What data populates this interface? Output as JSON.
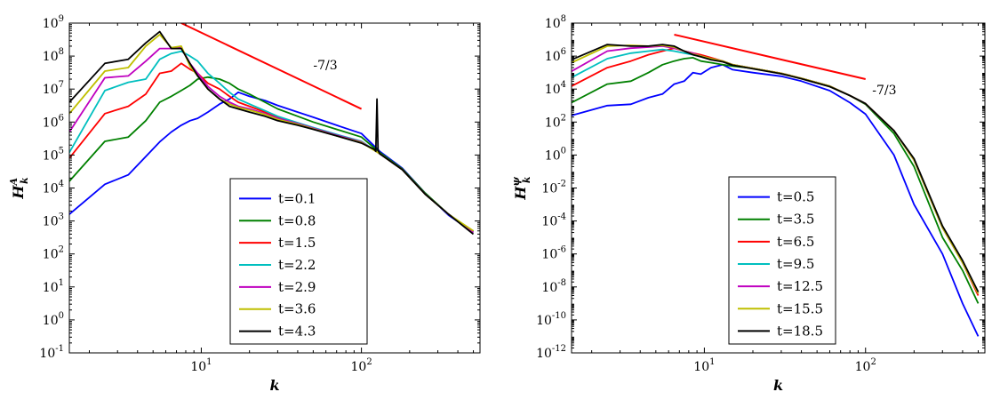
{
  "chart_data": [
    {
      "type": "line",
      "xscale": "log",
      "yscale": "log",
      "xlim": [
        1.5,
        550
      ],
      "ylim": [
        0.1,
        1000000000
      ],
      "xlabel": "k",
      "ylabel": "H",
      "ylabel_sup": "A",
      "ylabel_sub": "k",
      "x_ticks": [
        10,
        100
      ],
      "x_tick_labels": [
        {
          "base": "10",
          "exp": "1"
        },
        {
          "base": "10",
          "exp": "2"
        }
      ],
      "y_ticks": [
        0.1,
        1,
        10,
        100,
        1000,
        10000,
        100000,
        1000000,
        10000000,
        100000000,
        1000000000
      ],
      "y_tick_labels": [
        {
          "base": "10",
          "exp": "-1"
        },
        {
          "base": "10",
          "exp": "0"
        },
        {
          "base": "10",
          "exp": "1"
        },
        {
          "base": "10",
          "exp": "2"
        },
        {
          "base": "10",
          "exp": "3"
        },
        {
          "base": "10",
          "exp": "4"
        },
        {
          "base": "10",
          "exp": "5"
        },
        {
          "base": "10",
          "exp": "6"
        },
        {
          "base": "10",
          "exp": "7"
        },
        {
          "base": "10",
          "exp": "8"
        },
        {
          "base": "10",
          "exp": "9"
        }
      ],
      "legend_position": "lower-center",
      "series": [
        {
          "name": "t=0.1",
          "color": "#0000ff",
          "x": [
            1.5,
            2.5,
            3.5,
            4.5,
            5.5,
            6.5,
            7.5,
            8.5,
            9.5,
            11,
            13,
            15,
            17,
            20,
            25,
            30,
            40,
            50,
            70,
            100,
            130,
            180,
            250,
            350,
            500
          ],
          "y": [
            1600,
            13000,
            25000,
            90000,
            250000,
            500000,
            800000,
            1100000,
            1300000,
            2000000,
            3500000,
            5000000,
            8000000,
            6000000,
            4500000,
            3200000,
            2000000,
            1400000,
            800000,
            450000,
            130000,
            40000,
            7000,
            1500,
            450
          ]
        },
        {
          "name": "t=0.8",
          "color": "#008000",
          "x": [
            1.5,
            2.5,
            3.5,
            4.5,
            5.5,
            6.5,
            7.5,
            8.5,
            9.5,
            11,
            13,
            15,
            17,
            20,
            25,
            30,
            40,
            50,
            70,
            100,
            130,
            180,
            250,
            350,
            500
          ],
          "y": [
            16000,
            260000,
            350000,
            1100000,
            4000000,
            6000000,
            9000000,
            13000000,
            20000000,
            23000000,
            20000000,
            15000000,
            10000000,
            7000000,
            4000000,
            2500000,
            1500000,
            1000000,
            600000,
            350000,
            120000,
            38000,
            7000,
            1600,
            480
          ]
        },
        {
          "name": "t=1.5",
          "color": "#ff0000",
          "x": [
            1.5,
            2.5,
            3.5,
            4.5,
            5.5,
            6.5,
            7.5,
            8.5,
            9.5,
            11,
            13,
            15,
            17,
            20,
            25,
            30,
            40,
            50,
            70,
            100,
            130,
            180,
            250,
            350,
            500
          ],
          "y": [
            80000,
            1800000,
            3000000,
            7000000,
            30000000,
            35000000,
            60000000,
            40000000,
            30000000,
            15000000,
            10000000,
            6000000,
            4000000,
            3000000,
            2000000,
            1400000,
            900000,
            650000,
            400000,
            250000,
            110000,
            36000,
            6500,
            1600,
            450
          ]
        },
        {
          "name": "t=2.2",
          "color": "#00bfbf",
          "x": [
            1.5,
            2.5,
            3.5,
            4.5,
            5.5,
            6.5,
            7.5,
            8.5,
            9.5,
            11,
            13,
            15,
            17,
            20,
            25,
            30,
            40,
            50,
            70,
            100,
            130,
            180,
            250,
            350,
            500
          ],
          "y": [
            120000,
            9000000,
            16000000,
            20000000,
            80000000,
            120000000,
            140000000,
            100000000,
            70000000,
            30000000,
            15000000,
            8000000,
            5000000,
            3500000,
            2200000,
            1500000,
            950000,
            680000,
            420000,
            260000,
            110000,
            36000,
            6500,
            1600,
            450
          ]
        },
        {
          "name": "t=2.9",
          "color": "#bf00bf",
          "x": [
            1.5,
            2.5,
            3.5,
            4.5,
            5.5,
            6.5,
            7.5,
            8.5,
            9.5,
            11,
            13,
            15,
            17,
            20,
            25,
            30,
            40,
            50,
            70,
            100,
            130,
            180,
            250,
            350,
            500
          ],
          "y": [
            500000,
            22000000,
            25000000,
            70000000,
            170000000,
            170000000,
            180000000,
            60000000,
            30000000,
            12000000,
            6000000,
            4000000,
            3000000,
            2500000,
            1800000,
            1300000,
            900000,
            650000,
            400000,
            250000,
            110000,
            36000,
            6500,
            1600,
            450
          ]
        },
        {
          "name": "t=3.6",
          "color": "#bfbf00",
          "x": [
            1.5,
            2.5,
            3.5,
            4.5,
            5.5,
            6.5,
            7.5,
            8.5,
            9.5,
            11,
            13,
            15,
            17,
            20,
            25,
            30,
            40,
            50,
            70,
            100,
            130,
            180,
            250,
            350,
            500
          ],
          "y": [
            1800000,
            35000000,
            45000000,
            200000000,
            450000000,
            180000000,
            200000000,
            50000000,
            25000000,
            10000000,
            5000000,
            3500000,
            2800000,
            2300000,
            1700000,
            1200000,
            850000,
            620000,
            380000,
            240000,
            110000,
            36000,
            6500,
            1600,
            500
          ]
        },
        {
          "name": "t=4.3",
          "color": "#000000",
          "x": [
            1.5,
            2.5,
            3.5,
            4.5,
            5.5,
            6.5,
            7.5,
            8.5,
            9.5,
            11,
            13,
            15,
            17,
            20,
            25,
            30,
            40,
            50,
            70,
            100,
            120,
            123,
            125,
            127,
            130,
            180,
            250,
            350,
            500
          ],
          "y": [
            4000000,
            60000000,
            80000000,
            250000000,
            550000000,
            170000000,
            170000000,
            60000000,
            25000000,
            10000000,
            5000000,
            3000000,
            2500000,
            2000000,
            1500000,
            1100000,
            800000,
            600000,
            380000,
            230000,
            150000,
            130000,
            5000000,
            140000,
            110000,
            36000,
            6500,
            1600,
            400
          ]
        }
      ],
      "reference_line": {
        "color": "#ff0000",
        "x": [
          7.5,
          100
        ],
        "y": [
          1000000000,
          2500000
        ],
        "label": "-7/3",
        "label_x": 50,
        "label_y": 40000000
      }
    },
    {
      "type": "line",
      "xscale": "log",
      "yscale": "log",
      "xlim": [
        1.5,
        550
      ],
      "ylim": [
        1e-12,
        100000000
      ],
      "xlabel": "k",
      "ylabel": "H",
      "ylabel_sup": "ψ",
      "ylabel_sub": "k",
      "x_ticks": [
        10,
        100
      ],
      "x_tick_labels": [
        {
          "base": "10",
          "exp": "1"
        },
        {
          "base": "10",
          "exp": "2"
        }
      ],
      "y_ticks": [
        1e-12,
        1e-10,
        1e-08,
        1e-06,
        0.0001,
        0.01,
        1,
        100,
        10000,
        1000000,
        100000000
      ],
      "y_tick_labels": [
        {
          "base": "10",
          "exp": "-12"
        },
        {
          "base": "10",
          "exp": "-10"
        },
        {
          "base": "10",
          "exp": "-8"
        },
        {
          "base": "10",
          "exp": "-6"
        },
        {
          "base": "10",
          "exp": "-4"
        },
        {
          "base": "10",
          "exp": "-2"
        },
        {
          "base": "10",
          "exp": "0"
        },
        {
          "base": "10",
          "exp": "2"
        },
        {
          "base": "10",
          "exp": "4"
        },
        {
          "base": "10",
          "exp": "6"
        },
        {
          "base": "10",
          "exp": "8"
        }
      ],
      "legend_position": "lower-center",
      "series": [
        {
          "name": "t=0.5",
          "color": "#0000ff",
          "x": [
            1.5,
            2.5,
            3.5,
            4.5,
            5.5,
            6.5,
            7.5,
            8.5,
            9.5,
            11,
            13,
            15,
            20,
            30,
            40,
            60,
            80,
            100,
            150,
            200,
            300,
            400,
            500
          ],
          "y": [
            250,
            1000,
            1200,
            3000,
            5000,
            20000,
            30000,
            100000,
            80000,
            200000,
            300000,
            150000,
            100000,
            60000,
            30000,
            8000,
            1500,
            300,
            1,
            0.001,
            1e-06,
            1e-09,
            1e-11
          ]
        },
        {
          "name": "t=3.5",
          "color": "#008000",
          "x": [
            1.5,
            2.5,
            3.5,
            4.5,
            5.5,
            6.5,
            7.5,
            8.5,
            9.5,
            11,
            13,
            15,
            20,
            30,
            40,
            60,
            80,
            100,
            150,
            200,
            300,
            400,
            500
          ],
          "y": [
            1500,
            20000,
            30000,
            100000,
            300000,
            500000,
            700000,
            800000,
            500000,
            400000,
            300000,
            250000,
            180000,
            90000,
            45000,
            15000,
            4000,
            1200,
            20,
            0.2,
            1e-05,
            1e-07,
            1e-09
          ]
        },
        {
          "name": "t=6.5",
          "color": "#ff0000",
          "x": [
            1.5,
            2.5,
            3.5,
            4.5,
            5.5,
            6.5,
            7.5,
            8.5,
            9.5,
            11,
            13,
            15,
            20,
            30,
            40,
            60,
            80,
            100,
            150,
            200,
            300,
            400,
            500
          ],
          "y": [
            15000,
            200000,
            500000,
            1200000,
            2000000,
            3000000,
            2000000,
            1500000,
            1200000,
            800000,
            500000,
            300000,
            180000,
            90000,
            45000,
            15000,
            4000,
            1300,
            30,
            0.5,
            4e-05,
            3e-07,
            3e-09
          ]
        },
        {
          "name": "t=9.5",
          "color": "#00bfbf",
          "x": [
            1.5,
            2.5,
            3.5,
            4.5,
            5.5,
            6.5,
            7.5,
            8.5,
            9.5,
            11,
            13,
            15,
            20,
            30,
            40,
            60,
            80,
            100,
            150,
            200,
            300,
            400,
            500
          ],
          "y": [
            50000,
            700000,
            1500000,
            2000000,
            2500000,
            2000000,
            1500000,
            1200000,
            1000000,
            700000,
            500000,
            300000,
            180000,
            90000,
            45000,
            15000,
            4000,
            1300,
            30,
            0.5,
            4e-05,
            3e-07,
            4e-09
          ]
        },
        {
          "name": "t=12.5",
          "color": "#bf00bf",
          "x": [
            1.5,
            2.5,
            3.5,
            4.5,
            5.5,
            6.5,
            7.5,
            8.5,
            9.5,
            11,
            13,
            15,
            20,
            30,
            40,
            60,
            80,
            100,
            150,
            200,
            300,
            400,
            500
          ],
          "y": [
            120000,
            2000000,
            3000000,
            3500000,
            4000000,
            3000000,
            2000000,
            1500000,
            1000000,
            700000,
            500000,
            300000,
            180000,
            90000,
            45000,
            15000,
            4000,
            1300,
            30,
            0.5,
            4e-05,
            3e-07,
            4e-09
          ]
        },
        {
          "name": "t=15.5",
          "color": "#bfbf00",
          "x": [
            1.5,
            2.5,
            3.5,
            4.5,
            5.5,
            6.5,
            7.5,
            8.5,
            9.5,
            11,
            13,
            15,
            20,
            30,
            40,
            60,
            80,
            100,
            150,
            200,
            300,
            400,
            500
          ],
          "y": [
            400000,
            4000000,
            4500000,
            4000000,
            4500000,
            3500000,
            2000000,
            1300000,
            1000000,
            700000,
            500000,
            300000,
            180000,
            90000,
            45000,
            15000,
            4000,
            1300,
            30,
            0.5,
            4e-05,
            3e-07,
            4e-09
          ]
        },
        {
          "name": "t=18.5",
          "color": "#000000",
          "x": [
            1.5,
            2.5,
            3.5,
            4.5,
            5.5,
            6.5,
            7.5,
            8.5,
            9.5,
            11,
            13,
            15,
            20,
            30,
            40,
            60,
            80,
            100,
            150,
            200,
            300,
            400,
            500
          ],
          "y": [
            600000,
            5000000,
            4000000,
            4000000,
            5000000,
            4000000,
            2000000,
            1200000,
            900000,
            600000,
            450000,
            280000,
            170000,
            85000,
            42000,
            14000,
            4000,
            1300,
            30,
            0.6,
            5e-05,
            4e-07,
            5e-09
          ]
        }
      ],
      "reference_line": {
        "color": "#ff0000",
        "x": [
          6.5,
          100
        ],
        "y": [
          20000000,
          40000
        ],
        "label": "-7/3",
        "label_x": 110,
        "label_y": 5000
      }
    }
  ]
}
